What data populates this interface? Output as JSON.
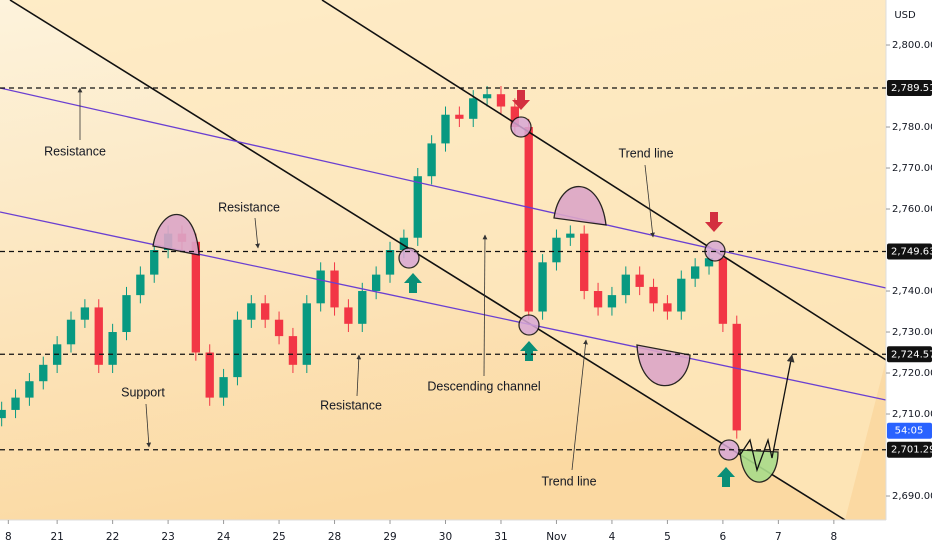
{
  "chart_data": {
    "type": "candlestick",
    "currency": "USD",
    "up_color": "#089981",
    "down_color": "#f23645",
    "x": [
      0,
      0.25,
      0.5,
      0.75,
      1,
      1.25,
      1.5,
      1.75,
      2,
      2.25,
      2.5,
      2.75,
      3,
      3.25,
      3.5,
      3.75,
      4,
      4.25,
      4.5,
      4.75,
      5,
      5.25,
      5.5,
      5.75,
      6,
      6.25,
      6.5,
      6.75,
      7,
      7.25,
      7.5,
      7.75,
      8,
      8.25,
      8.5,
      8.75,
      9,
      9.25,
      9.5,
      9.75,
      10,
      10.25,
      10.5,
      10.75,
      11,
      11.25,
      11.5,
      11.75,
      12,
      12.25,
      12.5,
      12.75,
      13,
      13.25
    ],
    "open": [
      2709,
      2711,
      2714,
      2718,
      2722,
      2727,
      2733,
      2736,
      2722,
      2730,
      2739,
      2744,
      2750,
      2754,
      2752,
      2725,
      2714,
      2719,
      2733,
      2737,
      2733,
      2729,
      2722,
      2737,
      2745,
      2736,
      2732,
      2740,
      2744,
      2750,
      2753,
      2768,
      2776,
      2783,
      2782,
      2787,
      2788,
      2785,
      2780,
      2735,
      2747,
      2753,
      2754,
      2740,
      2736,
      2739,
      2744,
      2741,
      2737,
      2735,
      2743,
      2746,
      2748,
      2732
    ],
    "high": [
      2713,
      2716,
      2720,
      2724,
      2729,
      2735,
      2738,
      2738,
      2732,
      2741,
      2746,
      2752,
      2756,
      2756,
      2754,
      2727,
      2721,
      2735,
      2739,
      2739,
      2735,
      2731,
      2739,
      2747,
      2747,
      2738,
      2742,
      2746,
      2752,
      2755,
      2770,
      2778,
      2785,
      2785,
      2789,
      2790,
      2790,
      2787,
      2782,
      2749,
      2755,
      2756,
      2756,
      2742,
      2741,
      2746,
      2746,
      2743,
      2739,
      2745,
      2748,
      2750,
      2750,
      2734
    ],
    "low": [
      2707,
      2709,
      2712,
      2716,
      2720,
      2725,
      2731,
      2720,
      2720,
      2728,
      2737,
      2742,
      2748,
      2750,
      2723,
      2712,
      2712,
      2717,
      2731,
      2731,
      2727,
      2720,
      2720,
      2735,
      2734,
      2730,
      2730,
      2738,
      2742,
      2748,
      2751,
      2766,
      2774,
      2780,
      2780,
      2785,
      2783,
      2778,
      2733,
      2733,
      2745,
      2751,
      2738,
      2734,
      2734,
      2737,
      2739,
      2735,
      2733,
      2733,
      2741,
      2744,
      2730,
      2704
    ],
    "close": [
      2711,
      2714,
      2718,
      2722,
      2727,
      2733,
      2736,
      2722,
      2730,
      2739,
      2744,
      2750,
      2754,
      2752,
      2725,
      2714,
      2719,
      2733,
      2737,
      2733,
      2729,
      2722,
      2737,
      2745,
      2736,
      2732,
      2740,
      2744,
      2750,
      2753,
      2768,
      2776,
      2783,
      2782,
      2787,
      2788,
      2785,
      2780,
      2735,
      2747,
      2753,
      2754,
      2740,
      2736,
      2739,
      2744,
      2741,
      2737,
      2735,
      2743,
      2746,
      2748,
      2732,
      2706
    ],
    "xlim": [
      -0.03,
      15.94
    ],
    "ylim": [
      2684.15,
      2810.98
    ],
    "xticks": [
      {
        "value": 0.12,
        "label": "8"
      },
      {
        "value": 1,
        "label": "21"
      },
      {
        "value": 2,
        "label": "22"
      },
      {
        "value": 3,
        "label": "23"
      },
      {
        "value": 4,
        "label": "24"
      },
      {
        "value": 5,
        "label": "25"
      },
      {
        "value": 6,
        "label": "28"
      },
      {
        "value": 7,
        "label": "29"
      },
      {
        "value": 8,
        "label": "30"
      },
      {
        "value": 9,
        "label": "31"
      },
      {
        "value": 10,
        "label": "Nov"
      },
      {
        "value": 11,
        "label": "4"
      },
      {
        "value": 12,
        "label": "5"
      },
      {
        "value": 13,
        "label": "6"
      },
      {
        "value": 14,
        "label": "7"
      },
      {
        "value": 15,
        "label": "8"
      }
    ],
    "yticks": [
      {
        "value": 2690,
        "label": "2,690.00"
      },
      {
        "value": 2710,
        "label": "2,710.00"
      },
      {
        "value": 2720,
        "label": "2,720.00"
      },
      {
        "value": 2730,
        "label": "2,730.00"
      },
      {
        "value": 2740,
        "label": "2,740.00"
      },
      {
        "value": 2760,
        "label": "2,760.00"
      },
      {
        "value": 2770,
        "label": "2,770.00"
      },
      {
        "value": 2780,
        "label": "2,780.00"
      },
      {
        "value": 2800,
        "label": "2,800.00"
      }
    ],
    "levels": [
      {
        "value": 2789.51,
        "label": "2,789.51"
      },
      {
        "value": 2749.63,
        "label": "2,749.63"
      },
      {
        "value": 2724.57,
        "label": "2,724.57"
      },
      {
        "value": 2701.29,
        "label": "2,701.29"
      }
    ],
    "countdown": "54:05",
    "annotations": [
      "Resistance",
      "Resistance",
      "Support",
      "Resistance",
      "Descending channel",
      "Trend line",
      "Trend line"
    ]
  }
}
